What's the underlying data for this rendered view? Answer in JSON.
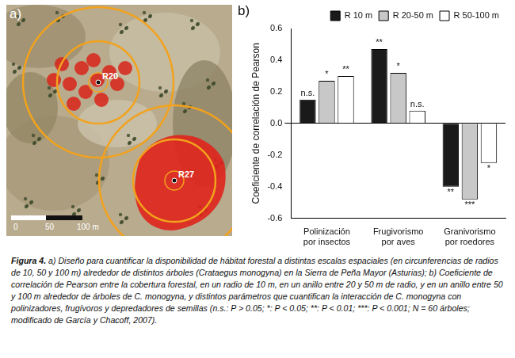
{
  "chart_data": {
    "type": "bar",
    "panel_label": "b)",
    "y_label": "Coeficiente de correlación de Pearson",
    "categories": [
      "Polinización por insectos",
      "Frugivorismo por aves",
      "Granivorismo por roedores"
    ],
    "series": [
      {
        "name": "R 10 m",
        "color": "#1a1a1a",
        "values": [
          0.15,
          0.47,
          -0.4
        ],
        "annotations": [
          "n.s.",
          "**",
          "**"
        ]
      },
      {
        "name": "R 20-50 m",
        "color": "#c8c8c8",
        "values": [
          0.27,
          0.32,
          -0.48
        ],
        "annotations": [
          "*",
          "*",
          "***"
        ]
      },
      {
        "name": "R 50-100 m",
        "color": "#ffffff",
        "values": [
          0.3,
          0.08,
          -0.25
        ],
        "annotations": [
          "**",
          "n.s.",
          "*"
        ]
      }
    ],
    "ylim": [
      -0.6,
      0.6
    ],
    "yticks": [
      -0.6,
      -0.4,
      -0.2,
      {
        "value": 0,
        "label": "0.0"
      },
      0.2,
      0.4,
      0.6
    ],
    "grid": false,
    "legend": "top"
  },
  "panel_a": {
    "panel_label": "a)",
    "trees": [
      "R20",
      "R27"
    ],
    "scale_labels": [
      "0",
      "50",
      "100 m"
    ]
  },
  "caption": {
    "label": "Figura 4.",
    "text": "a) Diseño para cuantificar la disponibilidad de hábitat forestal a distintas escalas espaciales (en circunferencias de radios de 10, 50 y 100 m) alrededor de distintos árboles (Crataegus monogyna) en la Sierra de Peña Mayor (Asturias); b) Coeficiente de correlación de Pearson entre la cobertura forestal, en un radio de 10 m, en un anillo entre 20 y 50 m de radio, y en un anillo entre 50 y 100 m alrededor de árboles de C. monogyna, y distintos parámetros que cuantifican la interacción de C. monogyna con polinizadores, frugívoros y depredadores de semillas (n.s.: P > 0.05; *: P < 0.05; **: P < 0.01; ***: P < 0.001; N = 60 árboles; modificado de García y Chacoff, 2007)."
  }
}
